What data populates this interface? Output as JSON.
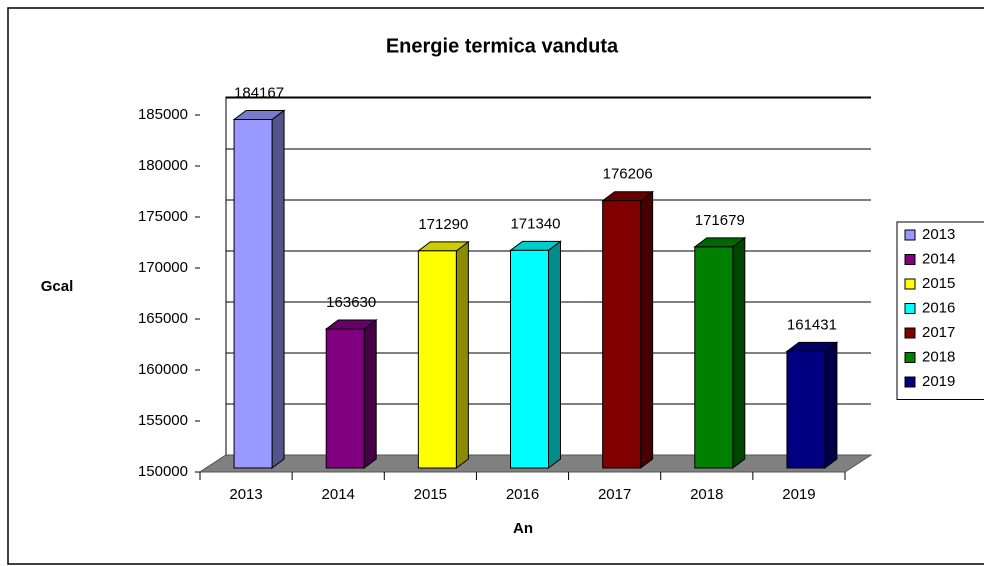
{
  "chart_data": {
    "type": "bar3d",
    "title": "Energie termica vanduta",
    "x_label": "An",
    "y_label": "Gcal",
    "categories": [
      "2013",
      "2014",
      "2015",
      "2016",
      "2017",
      "2018",
      "2019"
    ],
    "values": [
      184167,
      163630,
      171290,
      171340,
      176206,
      171679,
      161431
    ],
    "colors": [
      "#9999ff",
      "#800080",
      "#ffff00",
      "#00ffff",
      "#800000",
      "#008000",
      "#000080"
    ],
    "ylim": [
      150000,
      185000
    ],
    "yticks": [
      150000,
      155000,
      160000,
      165000,
      170000,
      175000,
      180000,
      185000
    ],
    "grid": true,
    "legend": "right"
  }
}
